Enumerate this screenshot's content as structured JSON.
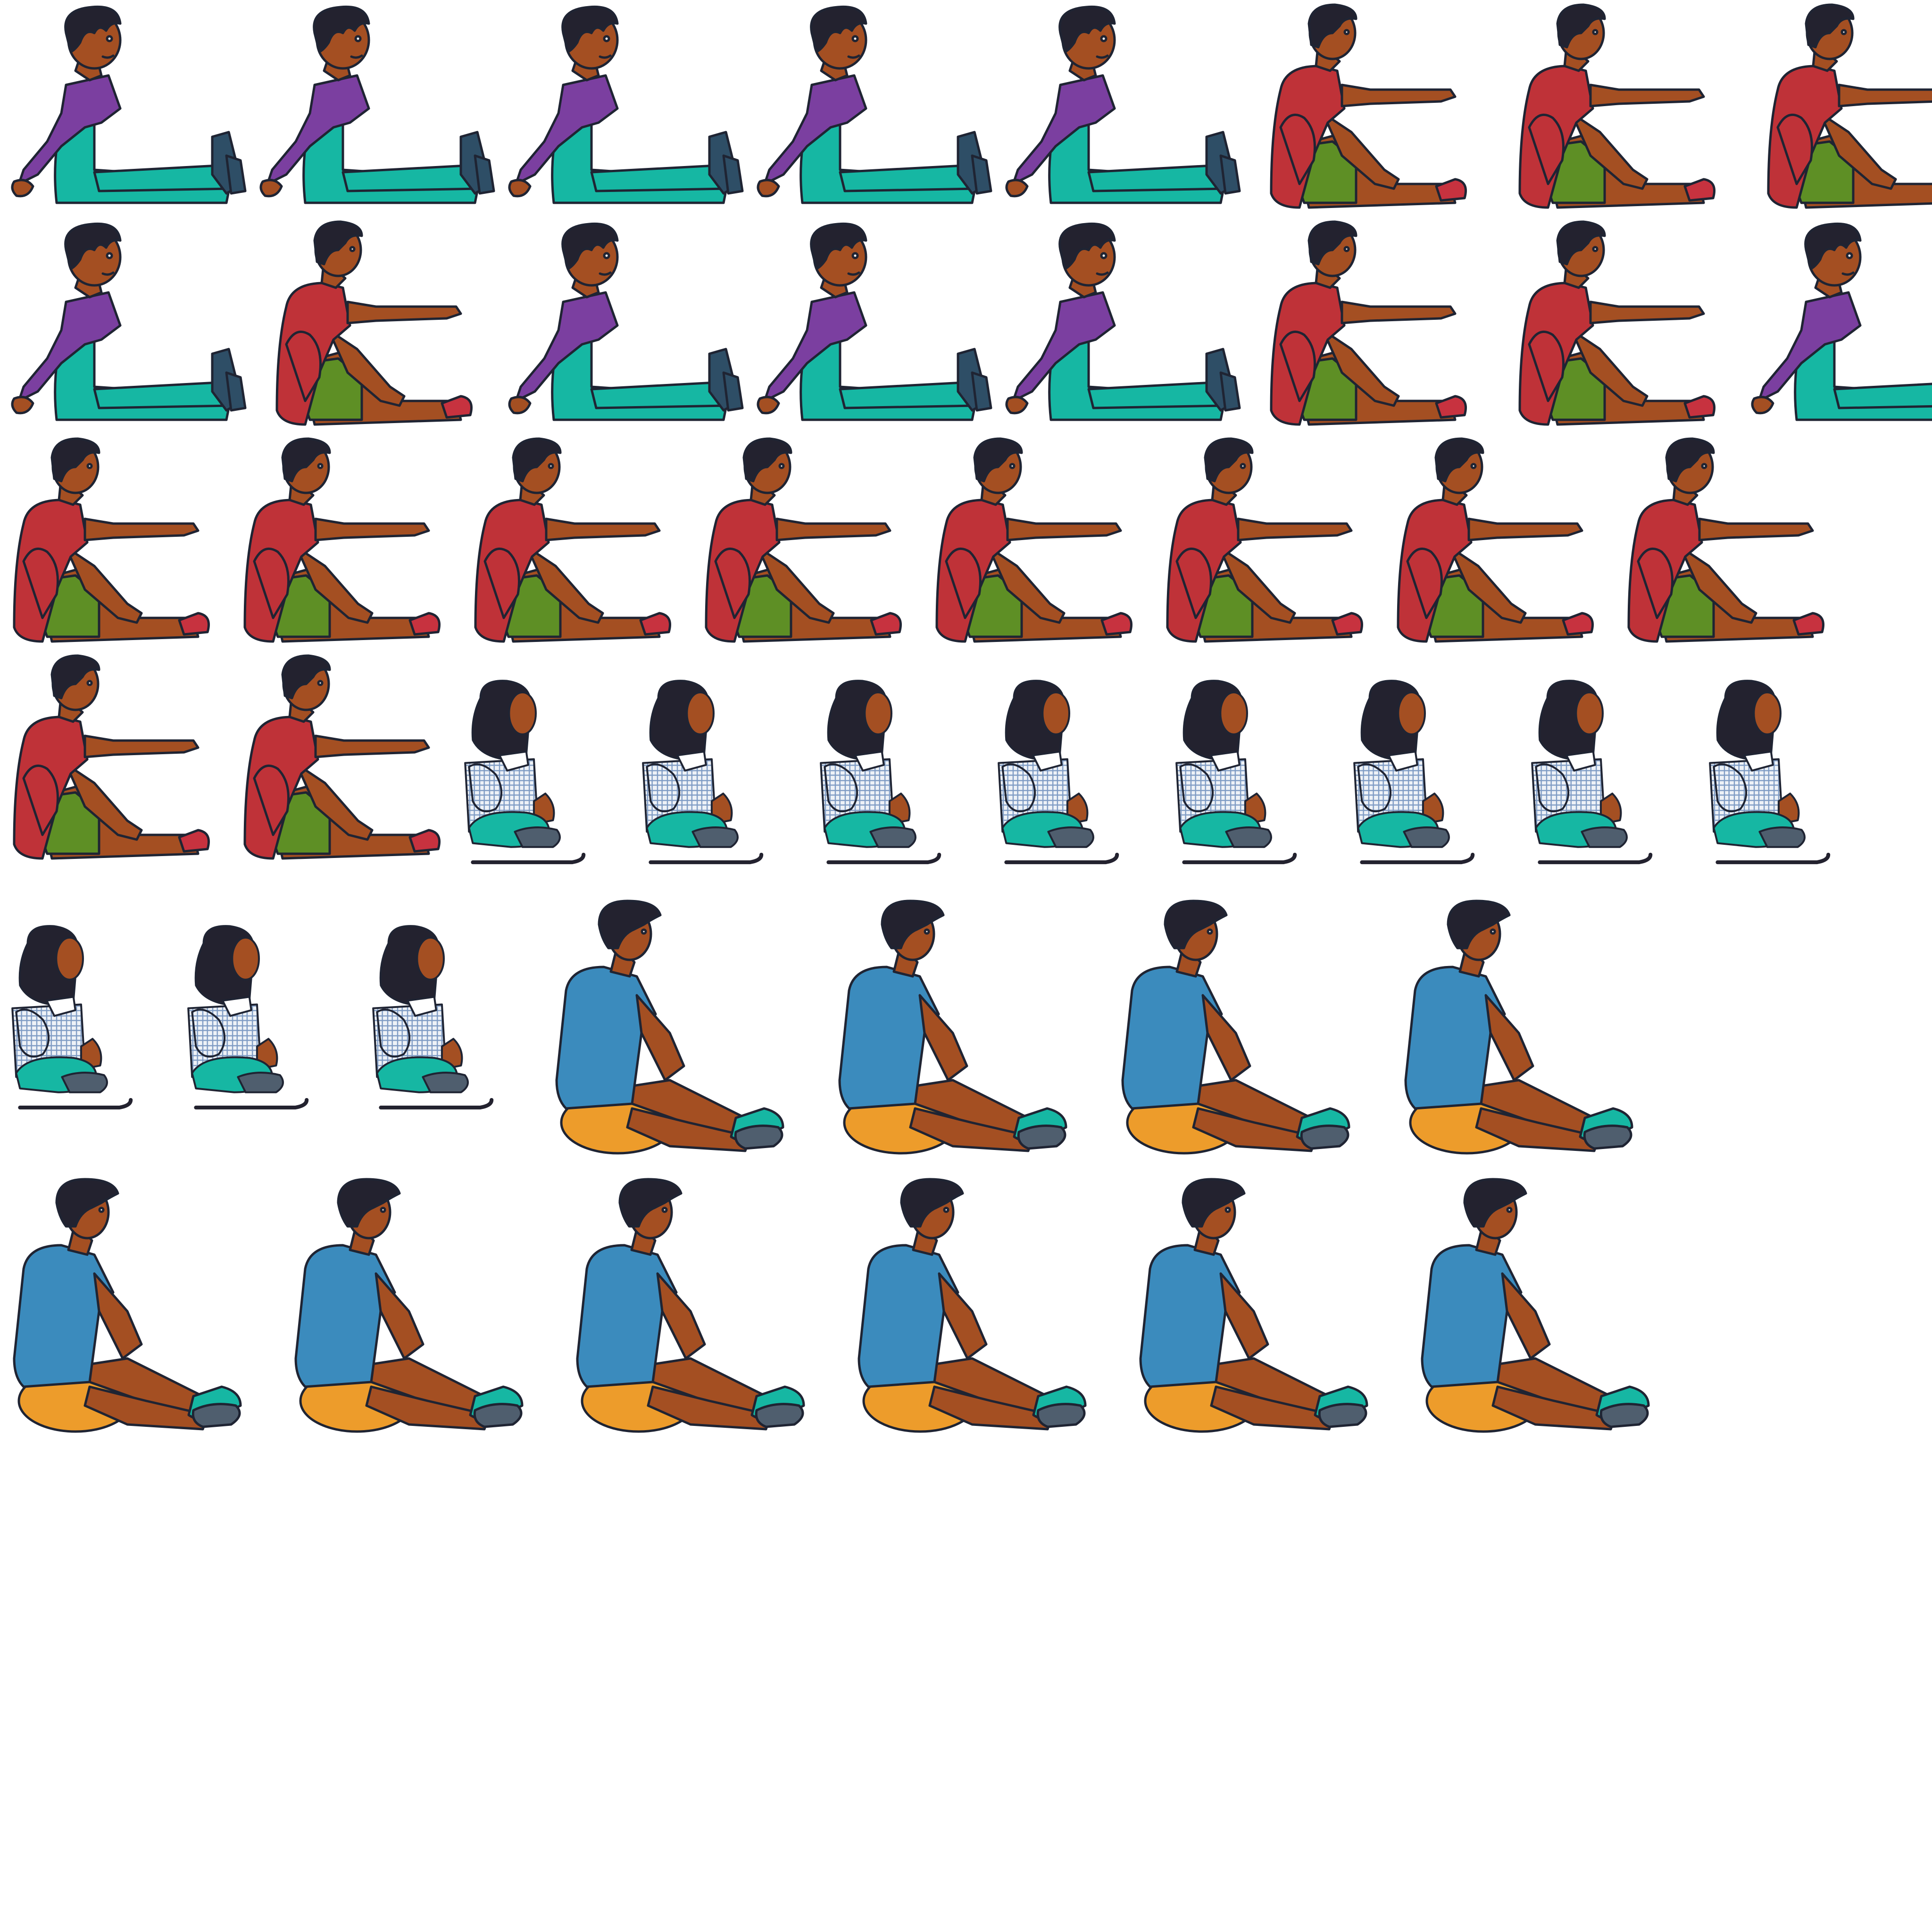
{
  "sheet": {
    "background": "#ffffff",
    "outline_color": "#1f2433",
    "skin_color": "#a44f22",
    "hair_color": "#23222f"
  },
  "characters": {
    "purple_boy": {
      "description_name": "boy-purple-sweater",
      "shirt": "#7b3fa0",
      "pants": "#16b7a3",
      "shoes": "#2e4e66"
    },
    "red_boy": {
      "description_name": "boy-red-shirt",
      "shirt": "#bf3238",
      "shorts": "#5e8f25",
      "shoes": "#c7323f"
    },
    "plaid_woman": {
      "description_name": "woman-plaid-shirt",
      "shirt": "#eef2f7",
      "plaid": "#7e9bc4",
      "skirt": "#16b7a3",
      "feet": "#4f5e6e",
      "cane": "#23222f"
    },
    "blue_boy": {
      "description_name": "boy-blue-shirt",
      "shirt": "#3b8bbd",
      "cushion": "#ed9c2b",
      "shoes": "#16b7a3"
    }
  },
  "frame_sequence": [
    [
      "purple_boy",
      "purple_boy",
      "purple_boy",
      "purple_boy",
      "purple_boy",
      "red_boy",
      "red_boy",
      "red_boy"
    ],
    [
      "purple_boy",
      "red_boy",
      "purple_boy",
      "purple_boy",
      "purple_boy",
      "red_boy",
      "red_boy",
      "purple_boy"
    ],
    [
      "red_boy",
      "red_boy",
      "red_boy",
      "red_boy",
      "red_boy",
      "red_boy",
      "red_boy",
      "red_boy"
    ],
    [
      "red_boy",
      "red_boy",
      "plaid_woman",
      "plaid_woman",
      "plaid_woman",
      "plaid_woman",
      "plaid_woman",
      "plaid_woman",
      "plaid_woman",
      "plaid_woman"
    ],
    [
      "plaid_woman",
      "plaid_woman",
      "plaid_woman",
      "blue_boy",
      "blue_boy",
      "blue_boy",
      "blue_boy"
    ],
    [
      "blue_boy",
      "blue_boy",
      "blue_boy",
      "blue_boy",
      "blue_boy",
      "blue_boy"
    ]
  ]
}
